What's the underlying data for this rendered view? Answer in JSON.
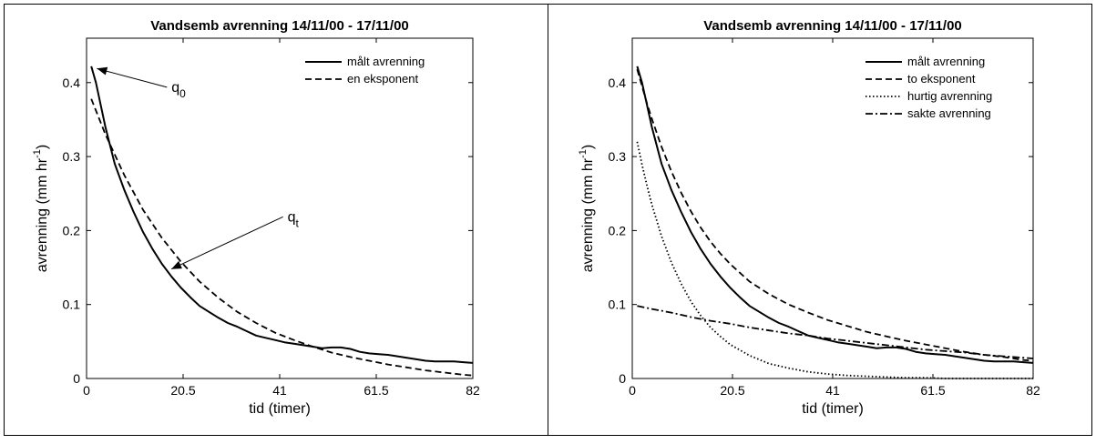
{
  "chart_data": [
    {
      "type": "line",
      "title": "Vandsemb avrenning 14/11/00 - 17/11/00",
      "xlabel": "tid (timer)",
      "ylabel_main": "avrenning (mm hr",
      "ylabel_sup": "-1",
      "ylabel_end": ")",
      "xlim": [
        0,
        82
      ],
      "ylim": [
        0,
        0.46
      ],
      "xticks": [
        0,
        20.5,
        41,
        61.5,
        82
      ],
      "xtick_labels": [
        "0",
        "20.5",
        "41",
        "61.5",
        "82"
      ],
      "yticks": [
        0,
        0.1,
        0.2,
        0.3,
        0.4
      ],
      "ytick_labels": [
        "0",
        "0.1",
        "0.2",
        "0.3",
        "0.4"
      ],
      "legend_position": "top-right",
      "series": [
        {
          "name": "målt avrenning",
          "style": "solid",
          "x": [
            1,
            2,
            3,
            4,
            6,
            8,
            10,
            12,
            14,
            16,
            18,
            20,
            22,
            24,
            26,
            28,
            30,
            32,
            34,
            36,
            38,
            40,
            42,
            44,
            46,
            48,
            50,
            52,
            54,
            56,
            58,
            60,
            62,
            64,
            66,
            68,
            70,
            72,
            74,
            76,
            78,
            80,
            82
          ],
          "y": [
            0.422,
            0.4,
            0.37,
            0.34,
            0.29,
            0.255,
            0.225,
            0.198,
            0.175,
            0.155,
            0.138,
            0.123,
            0.11,
            0.098,
            0.09,
            0.082,
            0.075,
            0.07,
            0.064,
            0.058,
            0.055,
            0.052,
            0.049,
            0.047,
            0.045,
            0.043,
            0.041,
            0.042,
            0.042,
            0.04,
            0.036,
            0.034,
            0.033,
            0.032,
            0.03,
            0.028,
            0.026,
            0.024,
            0.023,
            0.023,
            0.023,
            0.022,
            0.021
          ]
        },
        {
          "name": "en eksponent",
          "style": "dashed",
          "x": [
            1,
            4,
            8,
            12,
            16,
            20,
            24,
            28,
            32,
            36,
            40,
            44,
            48,
            52,
            56,
            60,
            64,
            68,
            72,
            76,
            80,
            82
          ],
          "y": [
            0.378,
            0.33,
            0.275,
            0.228,
            0.19,
            0.158,
            0.131,
            0.109,
            0.09,
            0.075,
            0.062,
            0.052,
            0.043,
            0.035,
            0.029,
            0.024,
            0.019,
            0.015,
            0.011,
            0.008,
            0.005,
            0.004
          ]
        }
      ],
      "annotations": [
        {
          "label": "q",
          "subscript": "0",
          "x": 4.5,
          "y": 0.395,
          "arrow_to_x": 2.2,
          "arrow_to_y": 0.419
        },
        {
          "label": "q",
          "subscript": "t",
          "x": 33,
          "y": 0.205,
          "arrow_to_x": 18,
          "arrow_to_y": 0.148
        }
      ]
    },
    {
      "type": "line",
      "title": "Vandsemb avrenning 14/11/00 - 17/11/00",
      "xlabel": "tid (timer)",
      "ylabel_main": "avrenning (mm hr",
      "ylabel_sup": "-1",
      "ylabel_end": ")",
      "xlim": [
        0,
        82
      ],
      "ylim": [
        0,
        0.46
      ],
      "xticks": [
        0,
        20.5,
        41,
        61.5,
        82
      ],
      "xtick_labels": [
        "0",
        "20.5",
        "41",
        "61.5",
        "82"
      ],
      "yticks": [
        0,
        0.1,
        0.2,
        0.3,
        0.4
      ],
      "ytick_labels": [
        "0",
        "0.1",
        "0.2",
        "0.3",
        "0.4"
      ],
      "legend_position": "top-right",
      "series": [
        {
          "name": "målt avrenning",
          "style": "solid",
          "x": [
            1,
            2,
            3,
            4,
            6,
            8,
            10,
            12,
            14,
            16,
            18,
            20,
            22,
            24,
            26,
            28,
            30,
            32,
            34,
            36,
            38,
            40,
            42,
            44,
            46,
            48,
            50,
            52,
            54,
            56,
            58,
            60,
            62,
            64,
            66,
            68,
            70,
            72,
            74,
            76,
            78,
            80,
            82
          ],
          "y": [
            0.422,
            0.4,
            0.37,
            0.34,
            0.29,
            0.255,
            0.225,
            0.198,
            0.175,
            0.155,
            0.138,
            0.123,
            0.11,
            0.098,
            0.09,
            0.082,
            0.075,
            0.07,
            0.064,
            0.058,
            0.055,
            0.052,
            0.049,
            0.047,
            0.045,
            0.043,
            0.041,
            0.042,
            0.042,
            0.04,
            0.036,
            0.034,
            0.033,
            0.032,
            0.03,
            0.028,
            0.026,
            0.024,
            0.023,
            0.023,
            0.023,
            0.022,
            0.021
          ]
        },
        {
          "name": "to eksponent",
          "style": "dashed",
          "x": [
            1,
            2,
            3,
            4,
            6,
            8,
            10,
            12,
            14,
            16,
            18,
            20,
            24,
            28,
            32,
            36,
            40,
            44,
            48,
            52,
            56,
            60,
            64,
            68,
            72,
            76,
            80,
            82
          ],
          "y": [
            0.418,
            0.395,
            0.372,
            0.351,
            0.313,
            0.28,
            0.251,
            0.226,
            0.204,
            0.185,
            0.169,
            0.155,
            0.131,
            0.114,
            0.1,
            0.089,
            0.079,
            0.071,
            0.063,
            0.057,
            0.051,
            0.046,
            0.041,
            0.036,
            0.032,
            0.029,
            0.025,
            0.024
          ]
        },
        {
          "name": "hurtig avrenning",
          "style": "dotted",
          "x": [
            1,
            2,
            3,
            4,
            6,
            8,
            10,
            12,
            14,
            16,
            18,
            20,
            24,
            28,
            32,
            36,
            40,
            44,
            48,
            52,
            56,
            60,
            64,
            68,
            72,
            76,
            80,
            82
          ],
          "y": [
            0.32,
            0.289,
            0.261,
            0.235,
            0.192,
            0.157,
            0.128,
            0.104,
            0.085,
            0.069,
            0.057,
            0.046,
            0.031,
            0.02,
            0.014,
            0.009,
            0.006,
            0.004,
            0.003,
            0.002,
            0.001,
            0.001,
            0.0,
            0.0,
            0.0,
            0.0,
            0.0,
            0.0
          ]
        },
        {
          "name": "sakte avrenning",
          "style": "dashdot",
          "x": [
            1,
            4,
            8,
            12,
            16,
            20,
            24,
            28,
            32,
            36,
            40,
            44,
            48,
            52,
            56,
            60,
            64,
            68,
            72,
            76,
            80,
            82
          ],
          "y": [
            0.098,
            0.094,
            0.089,
            0.083,
            0.078,
            0.074,
            0.069,
            0.065,
            0.061,
            0.058,
            0.054,
            0.051,
            0.048,
            0.045,
            0.042,
            0.039,
            0.037,
            0.035,
            0.032,
            0.03,
            0.028,
            0.027
          ]
        }
      ]
    }
  ]
}
